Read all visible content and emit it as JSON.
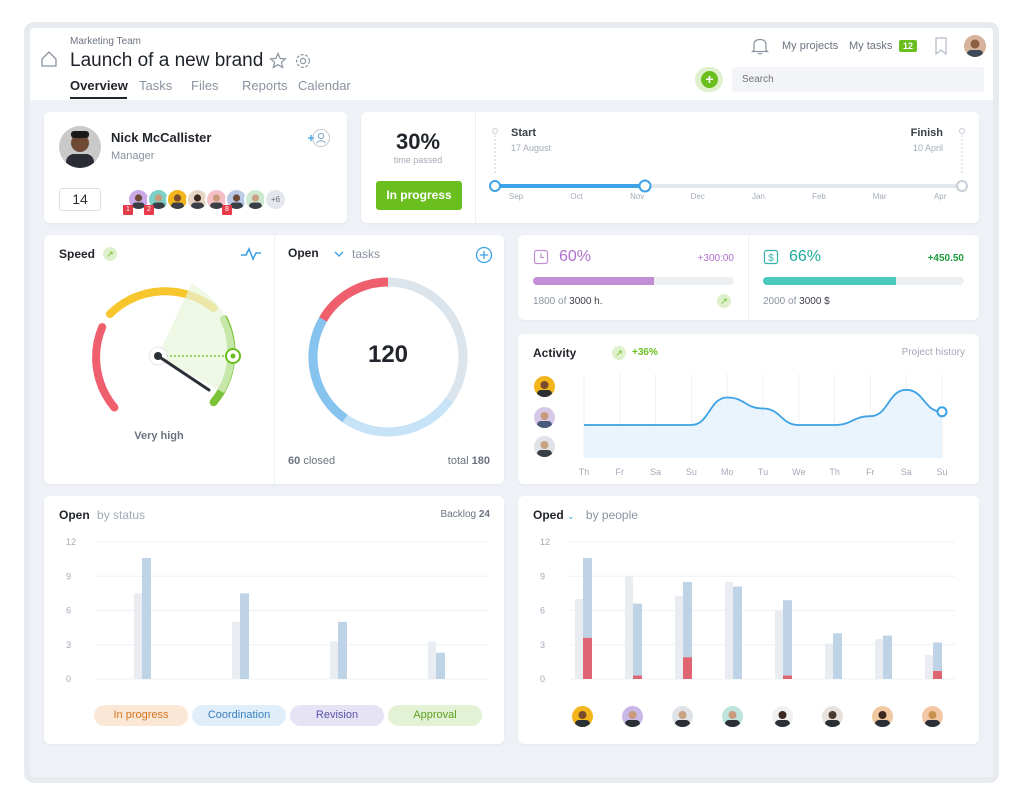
{
  "header": {
    "team": "Marketing Team",
    "title": "Launch of a new brand",
    "tabs": [
      {
        "label": "Overview"
      },
      {
        "label": "Tasks"
      },
      {
        "label": "Files"
      },
      {
        "label": "Reports"
      },
      {
        "label": "Calendar"
      }
    ],
    "my_projects": "My projects",
    "my_tasks": "My tasks",
    "my_tasks_count": "12",
    "search_placeholder": "Search"
  },
  "manager": {
    "name": "Nick McCallister",
    "role": "Manager",
    "count": "14",
    "more_members": "+6",
    "member_badges": [
      "1",
      "2",
      "8"
    ]
  },
  "timeline": {
    "percent": "30%",
    "percent_label": "time passed",
    "status_button": "In progress",
    "start_label": "Start",
    "start_date": "17 August",
    "finish_label": "Finish",
    "finish_date": "10 April",
    "months": [
      "Sep",
      "Oct",
      "Nov",
      "Dec",
      "Jan",
      "Feb",
      "Mar",
      "Apr"
    ]
  },
  "speed": {
    "title": "Speed",
    "value_label": "Very high",
    "level": 0.85
  },
  "open_tasks": {
    "title": "Open",
    "filter": "tasks",
    "total_value": "120",
    "closed_count": "60",
    "closed_label": "closed",
    "total_label": "total",
    "total_count": "180"
  },
  "hours": {
    "percent": "60%",
    "delta": "+300:00",
    "used": "1800 of",
    "total": "3000 h.",
    "fill": 0.6
  },
  "budget": {
    "percent": "66%",
    "delta": "+450.50",
    "used": "2000 of",
    "total": "3000 $",
    "fill": 0.66
  },
  "activity": {
    "title": "Activity",
    "delta": "+36%",
    "link": "Project history",
    "days": [
      "Th",
      "Fr",
      "Sa",
      "Su",
      "Mo",
      "Tu",
      "We",
      "Th",
      "Fr",
      "Sa",
      "Su"
    ],
    "values": [
      3,
      3,
      3,
      3,
      5.5,
      4.5,
      3,
      3,
      3.8,
      6.2,
      4.2
    ]
  },
  "by_status": {
    "title": "Open",
    "subtitle": "by status",
    "backlog_label": "Backlog",
    "backlog_count": "24",
    "y_ticks": [
      "12",
      "9",
      "6",
      "3",
      "0"
    ],
    "statuses": [
      "In progress",
      "Coordination",
      "Revision",
      "Approval"
    ]
  },
  "by_people": {
    "title": "Oped",
    "subtitle": "by people",
    "y_ticks": [
      "12",
      "9",
      "6",
      "3",
      "0"
    ]
  },
  "chart_data": [
    {
      "type": "bar",
      "title": "Open by status",
      "categories": [
        "In progress",
        "Coordination",
        "Revision",
        "Approval"
      ],
      "series": [
        {
          "values": [
            7.5,
            5,
            3.3,
            3.3
          ]
        },
        {
          "values": [
            10.6,
            7.5,
            5,
            2.3
          ]
        }
      ],
      "ylim": [
        0,
        12
      ]
    },
    {
      "type": "bar",
      "title": "Oped by people",
      "categories": [
        "1",
        "2",
        "3",
        "4",
        "5",
        "6",
        "7",
        "8"
      ],
      "series": [
        {
          "values": [
            7,
            9,
            7.3,
            8.5,
            6,
            3.1,
            3.5,
            2.1
          ]
        },
        {
          "values": [
            10.6,
            6.6,
            8.5,
            8.1,
            6.9,
            4,
            3.8,
            3.2
          ]
        },
        {
          "values": [
            3.6,
            0.3,
            1.9,
            0,
            0.3,
            0,
            0,
            0.7
          ]
        }
      ],
      "ylim": [
        0,
        12
      ]
    },
    {
      "type": "line",
      "title": "Activity",
      "x": [
        "Th",
        "Fr",
        "Sa",
        "Su",
        "Mo",
        "Tu",
        "We",
        "Th",
        "Fr",
        "Sa",
        "Su"
      ],
      "series": [
        {
          "values": [
            3,
            3,
            3,
            3,
            5.5,
            4.5,
            3,
            3,
            3.8,
            6.2,
            4.2
          ]
        }
      ]
    }
  ],
  "colors": {
    "accent_green": "#6abf1e",
    "accent_blue": "#3ea2e6",
    "hours_purple": "#c28ed6",
    "budget_teal": "#4cc9bf",
    "bar_light": "#e9edf2",
    "bar_blue": "#bfd3e6",
    "bar_red": "#e06573"
  }
}
